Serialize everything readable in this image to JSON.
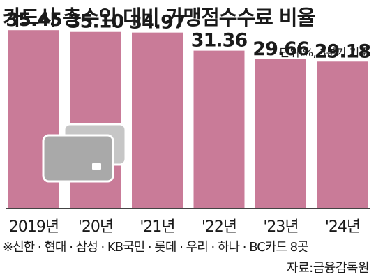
{
  "title": "카드사 총수익 대비 가맹점수수료 비율",
  "unit_note": "단위:%, 3분기 기준",
  "footnote": "※신한 · 현대 · 삼성 · KB국민 · 롯데 · 우리 · 하나 · BC카드 8곳",
  "source": "자료:금융감독원",
  "colors": {
    "bar": "#c97b98",
    "baseline": "#444444",
    "card": "#a9a9a9",
    "card_back": "#c6c6c6"
  },
  "chart_data": {
    "type": "bar",
    "categories": [
      "2019년",
      "'20년",
      "'21년",
      "'22년",
      "'23년",
      "'24년"
    ],
    "values": [
      35.45,
      35.1,
      34.97,
      31.36,
      29.66,
      29.18
    ],
    "value_labels": [
      "35.45",
      "35.10",
      "34.97",
      "31.36",
      "29.66",
      "29.18"
    ],
    "ylim": [
      0,
      40
    ],
    "grid": false,
    "legend": "none"
  }
}
